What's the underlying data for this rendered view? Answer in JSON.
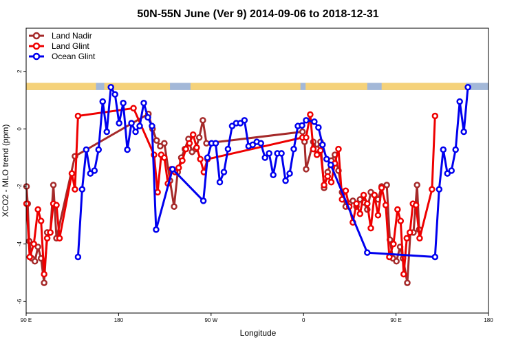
{
  "chart_data": {
    "type": "line",
    "title": "50N-55N June (Ver 9)   2014-09-06 to 2018-12-31",
    "xlabel": "Longitude",
    "ylabel": "XCO2 - MLO trend (ppm)",
    "x_ticks": [
      {
        "value": 90,
        "label": "90 E"
      },
      {
        "value": 180,
        "label": "180"
      },
      {
        "value": 270,
        "label": "90 W"
      },
      {
        "value": 360,
        "label": "0"
      },
      {
        "value": 450,
        "label": "90 E"
      },
      {
        "value": 540,
        "label": "180"
      }
    ],
    "y_ticks": [
      {
        "value": 2,
        "label": "2"
      },
      {
        "value": 0,
        "label": "0"
      },
      {
        "value": -2,
        "label": "-2"
      },
      {
        "value": -4,
        "label": "-4"
      },
      {
        "value": -6,
        "label": "-6"
      }
    ],
    "xlim": [
      90,
      540
    ],
    "ylim": [
      -6.4,
      3.5
    ],
    "grid": false,
    "legend_position": "top-left",
    "land_ocean_band": {
      "y_range": [
        1.35,
        1.6
      ],
      "ocean_color": "#a3b8d8",
      "land_color": "#f5d27a",
      "land_segments": [
        [
          90,
          158
        ],
        [
          166,
          230
        ],
        [
          250,
          357
        ],
        [
          362,
          422
        ],
        [
          436,
          518
        ]
      ]
    },
    "series": [
      {
        "name": "Land Nadir",
        "color": "#a52a2a",
        "points": [
          [
            90.4,
            -2.0
          ],
          [
            91.5,
            -2.6
          ],
          [
            93,
            -3.9
          ],
          [
            95.5,
            -4.5
          ],
          [
            98.5,
            -4.6
          ],
          [
            101.5,
            -4.1
          ],
          [
            104.5,
            -4.5
          ],
          [
            107.5,
            -5.35
          ],
          [
            110.5,
            -3.6
          ],
          [
            113.5,
            -3.6
          ],
          [
            116.5,
            -1.95
          ],
          [
            119.5,
            -3.8
          ],
          [
            137.5,
            -0.95
          ],
          [
            209,
            0.52
          ],
          [
            213,
            0.0
          ],
          [
            217,
            -0.4
          ],
          [
            220.5,
            -0.6
          ],
          [
            224.5,
            -0.5
          ],
          [
            230,
            -1.8
          ],
          [
            234,
            -2.7
          ],
          [
            237.5,
            -1.5
          ],
          [
            241,
            -1.0
          ],
          [
            244.5,
            -0.7
          ],
          [
            248,
            -0.35
          ],
          [
            251.5,
            -0.8
          ],
          [
            255,
            -0.7
          ],
          [
            258.5,
            -0.3
          ],
          [
            262,
            0.3
          ],
          [
            265.5,
            -0.5
          ],
          [
            359,
            -0.1
          ],
          [
            361,
            -0.45
          ],
          [
            362.5,
            -1.4
          ],
          [
            369.5,
            -0.45
          ],
          [
            373,
            -0.7
          ],
          [
            376.5,
            -0.45
          ],
          [
            380,
            -2.05
          ],
          [
            383.5,
            -1.5
          ],
          [
            387,
            -1.1
          ],
          [
            390.5,
            -0.9
          ],
          [
            394,
            -1.45
          ],
          [
            397.5,
            -2.2
          ],
          [
            401,
            -2.7
          ],
          [
            404.5,
            -2.6
          ],
          [
            408,
            -2.5
          ],
          [
            411.5,
            -2.7
          ],
          [
            415,
            -2.45
          ],
          [
            418.5,
            -2.55
          ],
          [
            422,
            -2.8
          ],
          [
            425.5,
            -2.2
          ],
          [
            429,
            -2.3
          ],
          [
            432.5,
            -2.45
          ],
          [
            436,
            -2.0
          ],
          [
            441,
            -1.95
          ],
          [
            444,
            -3.85
          ],
          [
            447,
            -4.5
          ],
          [
            450.4,
            -4.6
          ],
          [
            454,
            -4.1
          ],
          [
            456.8,
            -4.5
          ],
          [
            461,
            -5.35
          ],
          [
            464,
            -3.6
          ],
          [
            467,
            -3.6
          ],
          [
            470.5,
            -1.95
          ],
          [
            472.5,
            -3.5
          ]
        ]
      },
      {
        "name": "Land Glint",
        "color": "#ee0000",
        "points": [
          [
            90.4,
            -2.6
          ],
          [
            93.5,
            -4.45
          ],
          [
            97.5,
            -4.0
          ],
          [
            101.5,
            -2.8
          ],
          [
            104.5,
            -3.2
          ],
          [
            107.5,
            -5.05
          ],
          [
            110.5,
            -3.8
          ],
          [
            113.5,
            -3.6
          ],
          [
            116.5,
            -2.6
          ],
          [
            119.5,
            -2.65
          ],
          [
            122.5,
            -3.8
          ],
          [
            134.5,
            -1.55
          ],
          [
            137.5,
            -2.1
          ],
          [
            140.5,
            0.45
          ],
          [
            194.5,
            0.72
          ],
          [
            214.5,
            -0.9
          ],
          [
            218,
            -2.2
          ],
          [
            221.5,
            -0.9
          ],
          [
            224.5,
            -1.0
          ],
          [
            228,
            -1.9
          ],
          [
            231.5,
            -1.4
          ],
          [
            235,
            -1.5
          ],
          [
            238.5,
            -1.35
          ],
          [
            242,
            -1.1
          ],
          [
            245.5,
            -0.7
          ],
          [
            249,
            -0.5
          ],
          [
            252.5,
            -0.2
          ],
          [
            256,
            -0.65
          ],
          [
            259.5,
            -1.05
          ],
          [
            263,
            -1.5
          ],
          [
            266.5,
            -1.05
          ],
          [
            359,
            -0.3
          ],
          [
            362.5,
            -0.3
          ],
          [
            366.5,
            0.5
          ],
          [
            369.5,
            -0.7
          ],
          [
            373,
            -0.9
          ],
          [
            376.5,
            -0.75
          ],
          [
            380,
            -1.95
          ],
          [
            383.5,
            -1.65
          ],
          [
            387,
            -1.85
          ],
          [
            390.5,
            -1.2
          ],
          [
            394,
            -0.7
          ],
          [
            397.5,
            -2.45
          ],
          [
            401,
            -2.15
          ],
          [
            404.5,
            -2.7
          ],
          [
            408,
            -3.25
          ],
          [
            411.5,
            -2.6
          ],
          [
            415,
            -2.95
          ],
          [
            418.5,
            -2.3
          ],
          [
            422,
            -2.6
          ],
          [
            425.5,
            -3.45
          ],
          [
            429,
            -2.3
          ],
          [
            432.5,
            -3.0
          ],
          [
            436,
            -2.05
          ],
          [
            440,
            -2.65
          ],
          [
            443.5,
            -4.45
          ],
          [
            447.5,
            -4.0
          ],
          [
            451.5,
            -2.8
          ],
          [
            454.5,
            -3.2
          ],
          [
            457.5,
            -5.05
          ],
          [
            460.5,
            -3.8
          ],
          [
            463.5,
            -3.6
          ],
          [
            466.5,
            -2.6
          ],
          [
            469.5,
            -2.65
          ],
          [
            473,
            -3.8
          ],
          [
            485,
            -2.1
          ],
          [
            488,
            0.45
          ]
        ]
      },
      {
        "name": "Ocean Glint",
        "color": "#0000ee",
        "points": [
          [
            140.5,
            -4.45
          ],
          [
            144.5,
            -2.1
          ],
          [
            148.5,
            -0.72
          ],
          [
            152.5,
            -1.55
          ],
          [
            156.5,
            -1.45
          ],
          [
            160.5,
            -0.72
          ],
          [
            164.5,
            0.95
          ],
          [
            168.5,
            -0.1
          ],
          [
            172.5,
            1.45
          ],
          [
            176.5,
            1.2
          ],
          [
            180.5,
            0.2
          ],
          [
            184.5,
            0.9
          ],
          [
            188.5,
            -0.72
          ],
          [
            192.5,
            0.2
          ],
          [
            196.5,
            -0.1
          ],
          [
            200.5,
            0.1
          ],
          [
            204.5,
            0.9
          ],
          [
            208.5,
            0.4
          ],
          [
            212.5,
            0.1
          ],
          [
            216.5,
            -3.5
          ],
          [
            232.5,
            -1.4
          ],
          [
            262.5,
            -2.5
          ],
          [
            266.5,
            -1.0
          ],
          [
            270.5,
            -0.5
          ],
          [
            274.5,
            -0.5
          ],
          [
            278.5,
            -1.85
          ],
          [
            282.5,
            -1.5
          ],
          [
            286.5,
            -0.7
          ],
          [
            290.5,
            0.1
          ],
          [
            294.5,
            0.2
          ],
          [
            298.5,
            0.2
          ],
          [
            302.5,
            0.3
          ],
          [
            306.5,
            -0.6
          ],
          [
            310.5,
            -0.55
          ],
          [
            314.5,
            -0.45
          ],
          [
            318.5,
            -0.5
          ],
          [
            322.5,
            -1.0
          ],
          [
            326.5,
            -0.85
          ],
          [
            330.5,
            -1.6
          ],
          [
            334.5,
            -0.85
          ],
          [
            338.5,
            -0.85
          ],
          [
            342.5,
            -1.8
          ],
          [
            346.5,
            -1.55
          ],
          [
            350.5,
            -0.7
          ],
          [
            354.5,
            0.1
          ],
          [
            358.5,
            0.12
          ],
          [
            362.5,
            0.3
          ],
          [
            370.5,
            0.25
          ],
          [
            374.5,
            0.05
          ],
          [
            378.5,
            -0.55
          ],
          [
            382.5,
            -1.05
          ],
          [
            386.5,
            -1.25
          ],
          [
            422,
            -4.3
          ],
          [
            488,
            -4.45
          ],
          [
            492,
            -2.1
          ],
          [
            496,
            -0.72
          ],
          [
            500,
            -1.55
          ],
          [
            504,
            -1.45
          ],
          [
            508,
            -0.72
          ],
          [
            512,
            0.95
          ],
          [
            516,
            -0.1
          ],
          [
            520,
            1.45
          ]
        ]
      }
    ]
  }
}
